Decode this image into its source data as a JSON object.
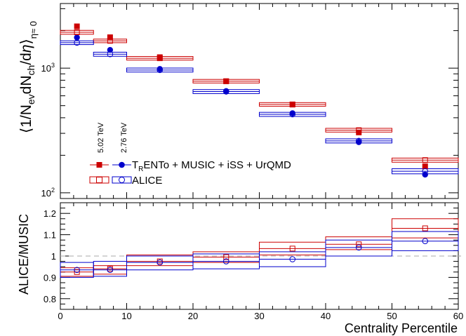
{
  "chart_data": {
    "type": "scatter",
    "xlabel": "Centrality Percentile",
    "xlim": [
      0,
      60
    ],
    "x_ticks": [
      {
        "v": 0,
        "label": "0"
      },
      {
        "v": 10,
        "label": "10"
      },
      {
        "v": 20,
        "label": "20"
      },
      {
        "v": 30,
        "label": "30"
      },
      {
        "v": 40,
        "label": "40"
      },
      {
        "v": 50,
        "label": "50"
      },
      {
        "v": 60,
        "label": "60"
      }
    ],
    "top": {
      "ylabel": "⟨1/N",
      "ylabel_parts": {
        "a": "⟨1/N",
        "b": "ev",
        "c": "dN",
        "d": "ch",
        "e": "/d",
        "f": "η",
        "g": "⟩",
        "h": "η≈ 0"
      },
      "yscale": "log",
      "ylim": [
        90,
        3300
      ],
      "y_ticks": [
        {
          "v": 100,
          "base": "10",
          "exp": "2"
        },
        {
          "v": 1000,
          "base": "10",
          "exp": "3"
        }
      ],
      "legend": {
        "energy_502": "5.02 TeV",
        "energy_276": "2.76 TeV",
        "model_label": "ENTo + MUSIC + iSS + UrQMD",
        "model_T": "T",
        "model_R": "R",
        "data_label": "ALICE"
      },
      "series": [
        {
          "name": "TRENTo 5.02 TeV",
          "color": "#cc0000",
          "marker": "square-filled",
          "x": [
            2.5,
            7.5,
            15,
            25,
            35,
            45,
            55
          ],
          "y": [
            2165,
            1770,
            1225,
            785,
            510,
            305,
            163
          ]
        },
        {
          "name": "TRENTo 2.76 TeV",
          "color": "#0000cc",
          "marker": "circle-filled",
          "x": [
            2.5,
            7.5,
            15,
            25,
            35,
            45,
            55
          ],
          "y": [
            1760,
            1400,
            985,
            655,
            435,
            255,
            140
          ]
        },
        {
          "name": "ALICE 5.02 TeV",
          "color": "#cc0000",
          "marker": "square-open",
          "x": [
            2.5,
            7.5,
            15,
            25,
            35,
            45,
            55
          ],
          "y": [
            1940,
            1655,
            1200,
            786,
            512,
            318,
            183
          ],
          "sys_lo": [
            1870,
            1600,
            1160,
            760,
            495,
            307,
            176
          ],
          "sys_hi": [
            2010,
            1710,
            1240,
            812,
            529,
            329,
            190
          ]
        },
        {
          "name": "ALICE 2.76 TeV",
          "color": "#0000cc",
          "marker": "circle-open",
          "x": [
            2.5,
            7.5,
            15,
            25,
            35,
            45,
            55
          ],
          "y": [
            1601,
            1294,
            966,
            649,
            426,
            261,
            149
          ],
          "sys_lo": [
            1545,
            1245,
            930,
            625,
            410,
            251,
            142
          ],
          "sys_hi": [
            1657,
            1343,
            1002,
            673,
            442,
            271,
            156
          ]
        }
      ]
    },
    "bottom": {
      "ylabel": "ALICE/MUSIC",
      "ylim": [
        0.75,
        1.25
      ],
      "y_ticks": [
        {
          "v": 0.8,
          "label": "0.8"
        },
        {
          "v": 0.9,
          "label": "0.9"
        },
        {
          "v": 1.0,
          "label": "1"
        },
        {
          "v": 1.1,
          "label": "1.1"
        },
        {
          "v": 1.2,
          "label": "1.2"
        }
      ],
      "reference_line": 1.0,
      "series": [
        {
          "name": "Ratio 5.02 TeV",
          "color": "#cc0000",
          "marker": "square-open",
          "x": [
            2.5,
            7.5,
            15,
            25,
            35,
            45,
            55
          ],
          "y": [
            0.925,
            0.94,
            0.975,
            0.995,
            1.035,
            1.055,
            1.13
          ],
          "sys_lo": [
            0.905,
            0.915,
            0.955,
            0.97,
            1.005,
            1.03,
            1.085
          ],
          "sys_hi": [
            0.945,
            0.955,
            1.005,
            1.02,
            1.065,
            1.09,
            1.175
          ]
        },
        {
          "name": "Ratio 2.76 TeV",
          "color": "#0000cc",
          "marker": "circle-open",
          "x": [
            2.5,
            7.5,
            15,
            25,
            35,
            45,
            55
          ],
          "y": [
            0.935,
            0.935,
            0.97,
            0.975,
            0.985,
            1.04,
            1.07
          ],
          "sys_lo": [
            0.9,
            0.905,
            0.935,
            0.94,
            0.95,
            1.0,
            1.025
          ],
          "sys_hi": [
            0.97,
            0.975,
            1.0,
            1.01,
            1.02,
            1.075,
            1.115
          ]
        }
      ]
    }
  }
}
